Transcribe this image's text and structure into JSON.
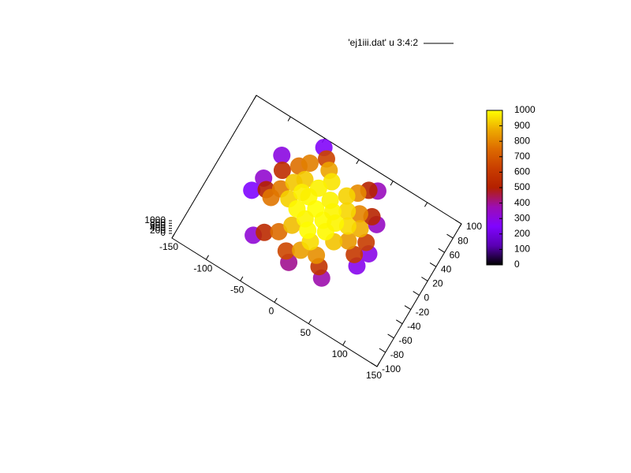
{
  "chart_data": {
    "type": "scatter3d",
    "legend_label": "'ej1iii.dat' u 3:4:2",
    "xlim": [
      -150,
      150
    ],
    "xticks": [
      -150,
      -100,
      -50,
      0,
      50,
      100,
      150
    ],
    "ylim": [
      -100,
      100
    ],
    "yticks": [
      -100,
      -80,
      -60,
      -40,
      -20,
      0,
      20,
      40,
      60,
      80,
      100
    ],
    "zlim": [
      0,
      1000
    ],
    "zticks": [
      0,
      200,
      400,
      600,
      800,
      1000
    ],
    "cblim": [
      0,
      1000
    ],
    "cbticks": [
      0,
      100,
      200,
      300,
      400,
      500,
      600,
      700,
      800,
      900,
      1000
    ],
    "colormap": [
      "#000000",
      "#5a00b4",
      "#8004ff",
      "#9c0db4",
      "#b42000",
      "#c93e00",
      "#dd6b00",
      "#eeab00",
      "#ffff00"
    ],
    "x": [
      -85,
      60,
      65,
      -90,
      -45,
      35,
      -65,
      -10,
      70,
      40,
      -95,
      -75,
      50,
      55,
      -80,
      -35,
      25,
      -55,
      60,
      -20,
      30,
      -60,
      35,
      40,
      -65,
      -25,
      15,
      -40,
      45,
      -70,
      20,
      -5,
      -50,
      -45,
      20,
      25,
      -50,
      -15,
      0,
      -30,
      30,
      -55,
      10,
      -15,
      -30,
      0,
      -20,
      -5,
      -35,
      5,
      -25,
      10,
      -10,
      -40,
      15
    ],
    "y": [
      55,
      45,
      -10,
      20,
      90,
      -45,
      -45,
      -50,
      10,
      80,
      0,
      40,
      50,
      0,
      10,
      80,
      -35,
      -35,
      20,
      -40,
      75,
      55,
      45,
      10,
      20,
      70,
      -25,
      -25,
      30,
      5,
      65,
      -30,
      65,
      45,
      40,
      0,
      15,
      60,
      -15,
      -10,
      25,
      35,
      55,
      22,
      30,
      15,
      5,
      40,
      10,
      30,
      45,
      5,
      -5,
      30,
      20
    ],
    "values": [
      300,
      350,
      280,
      330,
      260,
      380,
      320,
      400,
      290,
      360,
      250,
      560,
      520,
      600,
      500,
      640,
      580,
      540,
      620,
      650,
      510,
      760,
      800,
      840,
      780,
      860,
      820,
      750,
      880,
      770,
      810,
      850,
      790,
      920,
      940,
      910,
      930,
      960,
      950,
      900,
      945,
      915,
      935,
      1000,
      990,
      995,
      985,
      980,
      990,
      985,
      980,
      990,
      995,
      975,
      985
    ]
  }
}
